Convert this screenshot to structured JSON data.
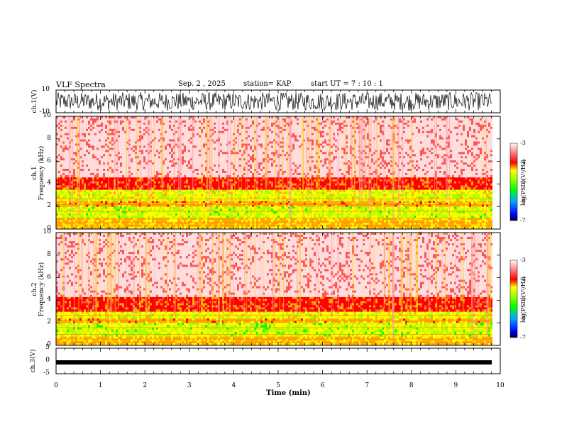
{
  "header": {
    "title": "VLF Spectra",
    "date": "Sep. 2 , 2025",
    "station": "station= KAP",
    "start": "start  UT =   7 : 10 : 1"
  },
  "chart_data": [
    {
      "type": "line",
      "panel": "ch.1 waveform",
      "ylabel": "ch.1(V)",
      "ylim": [
        -10,
        10
      ],
      "yticks": [
        "10",
        "-10"
      ],
      "xlim": [
        0,
        10
      ],
      "description_series": {
        "name": "ch.1 voltage",
        "amplitude_range": [
          -8,
          8
        ],
        "duration_min": 9.8
      }
    },
    {
      "type": "heatmap",
      "panel": "ch.1 spectrogram",
      "ylabel": "ch.1\nFrequency (kHz)",
      "ylabel_lines": [
        "ch.1",
        "Frequency  (kHz)"
      ],
      "ylim": [
        0,
        10
      ],
      "yticks": [
        "0",
        "2",
        "4",
        "6",
        "8",
        "10"
      ],
      "xlim": [
        0,
        9.8
      ],
      "colorbar": {
        "label": "log(PSD)(V²/Hz)",
        "range": [
          -7,
          -3
        ],
        "ticks": [
          "-3",
          "-4",
          "-5",
          "-6",
          "-7"
        ]
      },
      "bands_kHz": [
        {
          "from": 0,
          "to": 1.0,
          "level": -4.6
        },
        {
          "from": 1.0,
          "to": 2.0,
          "level": -5.0
        },
        {
          "from": 2.0,
          "to": 2.5,
          "level": -4.5
        },
        {
          "from": 2.5,
          "to": 3.5,
          "level": -4.9
        },
        {
          "from": 3.5,
          "to": 4.6,
          "level": -4.1
        },
        {
          "from": 4.6,
          "to": 10,
          "level": -3.4
        }
      ]
    },
    {
      "type": "heatmap",
      "panel": "ch.2 spectrogram",
      "ylabel_lines": [
        "ch.2",
        "Frequency  (kHz)"
      ],
      "ylim": [
        0,
        10
      ],
      "yticks": [
        "0",
        "2",
        "4",
        "6",
        "8",
        "10"
      ],
      "xlim": [
        0,
        9.8
      ],
      "colorbar": {
        "label": "log(PSD)(V²/Hz)",
        "range": [
          -7,
          -3
        ],
        "ticks": [
          "-3",
          "-4",
          "-5",
          "-6",
          "-7"
        ]
      },
      "bands_kHz": [
        {
          "from": 0,
          "to": 0.8,
          "level": -4.6
        },
        {
          "from": 0.8,
          "to": 2.0,
          "level": -5.0
        },
        {
          "from": 2.0,
          "to": 2.4,
          "level": -4.5
        },
        {
          "from": 2.4,
          "to": 3.0,
          "level": -4.9
        },
        {
          "from": 3.0,
          "to": 4.3,
          "level": -4.1
        },
        {
          "from": 4.3,
          "to": 10,
          "level": -3.4
        }
      ]
    },
    {
      "type": "line",
      "panel": "ch.3 waveform",
      "ylabel": "ch.3(V)",
      "ylim": [
        -5,
        5
      ],
      "yticks": [
        "5",
        "0",
        "-5"
      ],
      "xlim": [
        0,
        10
      ],
      "description_series": {
        "name": "ch.3 voltage",
        "level": -1,
        "duration_min": 9.8
      }
    }
  ],
  "xaxis": {
    "label": "Time  (min)",
    "ticks": [
      "0",
      "1",
      "2",
      "3",
      "4",
      "5",
      "6",
      "7",
      "8",
      "9",
      "10"
    ]
  },
  "colors": {
    "high": "#ff0000",
    "mid": "#ffff00",
    "low": "#00ff00"
  }
}
